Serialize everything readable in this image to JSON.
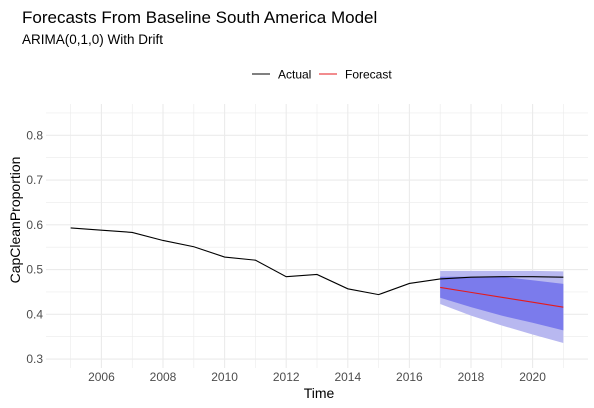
{
  "chart_data": {
    "type": "line",
    "title": "Forecasts From Baseline South America Model",
    "subtitle": "ARIMA(0,1,0) With Drift",
    "xlabel": "Time",
    "ylabel": "CapCleanProportion",
    "xlim": [
      2004.2,
      2021.8
    ],
    "ylim": [
      0.28,
      0.87
    ],
    "x_ticks": [
      2006,
      2008,
      2010,
      2012,
      2014,
      2016,
      2018,
      2020
    ],
    "y_ticks": [
      0.3,
      0.4,
      0.5,
      0.6,
      0.7,
      0.8
    ],
    "grid": true,
    "legend_position": "top",
    "colors": {
      "actual": "#000000",
      "forecast": "#e41a1c",
      "band_outer": "#b8b8f0",
      "band_inner": "#7b7bec",
      "grid": "#ebebeb"
    },
    "series": [
      {
        "name": "Actual",
        "x": [
          2005,
          2006,
          2007,
          2008,
          2009,
          2010,
          2011,
          2012,
          2013,
          2014,
          2015,
          2016,
          2017,
          2018,
          2019,
          2020,
          2021
        ],
        "y": [
          0.593,
          0.588,
          0.583,
          0.565,
          0.551,
          0.528,
          0.521,
          0.484,
          0.489,
          0.457,
          0.444,
          0.469,
          0.479,
          0.483,
          0.484,
          0.484,
          0.483
        ]
      },
      {
        "name": "Forecast",
        "x": [
          2017,
          2018,
          2019,
          2020,
          2021
        ],
        "y": [
          0.46,
          0.449,
          0.438,
          0.427,
          0.416
        ]
      }
    ],
    "bands": [
      {
        "level": "outer",
        "x": [
          2017,
          2018,
          2019,
          2020,
          2021
        ],
        "lower": [
          0.423,
          0.397,
          0.375,
          0.355,
          0.336
        ],
        "upper": [
          0.497,
          0.497,
          0.497,
          0.497,
          0.496
        ]
      },
      {
        "level": "inner",
        "x": [
          2017,
          2018,
          2019,
          2020,
          2021
        ],
        "lower": [
          0.437,
          0.416,
          0.397,
          0.381,
          0.364
        ],
        "upper": [
          0.484,
          0.484,
          0.484,
          0.476,
          0.468
        ]
      }
    ]
  }
}
